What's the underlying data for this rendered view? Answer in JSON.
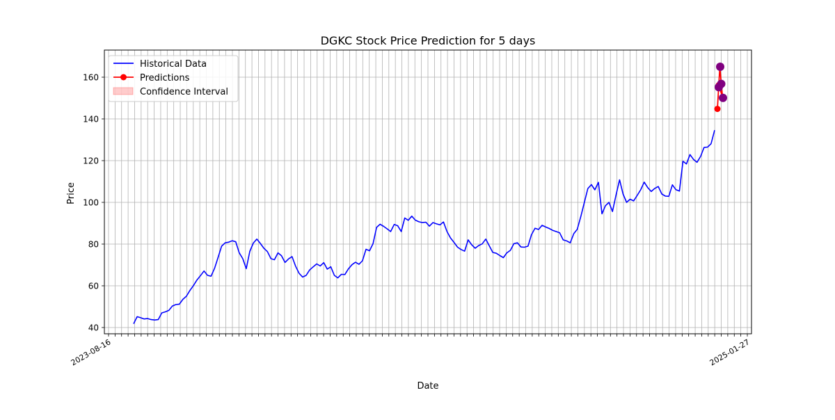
{
  "chart_data": {
    "type": "line",
    "title": "DGKC Stock Price Prediction for 5 days",
    "xlabel": "Date",
    "ylabel": "Price",
    "ylim": [
      37,
      173
    ],
    "y_ticks": [
      40,
      60,
      80,
      100,
      120,
      140,
      160
    ],
    "grid": true,
    "legend_position": "top-left",
    "x_tick_labels_legible": [
      "2023-08-16",
      "2025-01-27"
    ],
    "series": [
      {
        "name": "Historical Data",
        "color": "#0000ff",
        "values": [
          41.8,
          45.2,
          44.7,
          44.1,
          44.3,
          43.8,
          43.6,
          43.8,
          47.0,
          47.5,
          48.2,
          50.3,
          51.0,
          51.2,
          53.5,
          55.0,
          57.8,
          60.1,
          62.8,
          64.9,
          67.1,
          65.0,
          64.6,
          68.4,
          73.7,
          79.0,
          80.6,
          80.9,
          81.6,
          81.1,
          75.8,
          73.0,
          68.2,
          76.5,
          80.5,
          82.4,
          80.3,
          78.0,
          76.4,
          73.0,
          72.5,
          75.8,
          74.4,
          71.2,
          72.9,
          74.0,
          69.4,
          66.0,
          64.2,
          65.0,
          67.6,
          69.1,
          70.5,
          69.5,
          71.1,
          68.0,
          69.1,
          65.0,
          63.8,
          65.5,
          65.4,
          68.1,
          70.1,
          71.3,
          70.3,
          72.0,
          77.5,
          76.8,
          80.2,
          88.0,
          89.5,
          88.5,
          87.3,
          86.0,
          89.4,
          88.8,
          86.0,
          92.5,
          91.4,
          93.4,
          91.5,
          90.7,
          90.3,
          90.5,
          88.6,
          90.3,
          89.7,
          89.2,
          90.6,
          86.0,
          82.9,
          80.8,
          78.5,
          77.4,
          76.6,
          82.0,
          79.7,
          78.0,
          79.3,
          80.1,
          82.4,
          79.2,
          76.0,
          75.6,
          74.5,
          73.5,
          75.8,
          77.0,
          80.2,
          80.6,
          78.6,
          78.5,
          79.0,
          84.5,
          87.6,
          87.0,
          89.0,
          88.2,
          87.5,
          86.6,
          86.0,
          85.4,
          82.0,
          81.5,
          80.6,
          85.0,
          87.1,
          93.2,
          100.0,
          106.6,
          108.5,
          106.0,
          109.6,
          94.5,
          98.4,
          100.0,
          95.6,
          103.5,
          110.8,
          104.0,
          100.0,
          101.5,
          100.7,
          103.3,
          106.0,
          109.7,
          107.1,
          105.2,
          106.7,
          107.6,
          104.0,
          103.0,
          102.9,
          108.4,
          106.1,
          105.4,
          119.7,
          118.4,
          122.9,
          120.6,
          119.2,
          122.0,
          126.3,
          126.5,
          128.1,
          134.6
        ]
      },
      {
        "name": "Predictions",
        "color": "#ff0000",
        "values": [
          144.8,
          164.9,
          157.0,
          150.2,
          156.2
        ]
      }
    ],
    "highlighted_points": {
      "color": "#800080",
      "values": [
        155.2,
        165.0,
        156.8,
        150.1
      ]
    },
    "confidence_interval": {
      "name": "Confidence Interval",
      "color": "#ff0000",
      "alpha": 0.2
    }
  }
}
